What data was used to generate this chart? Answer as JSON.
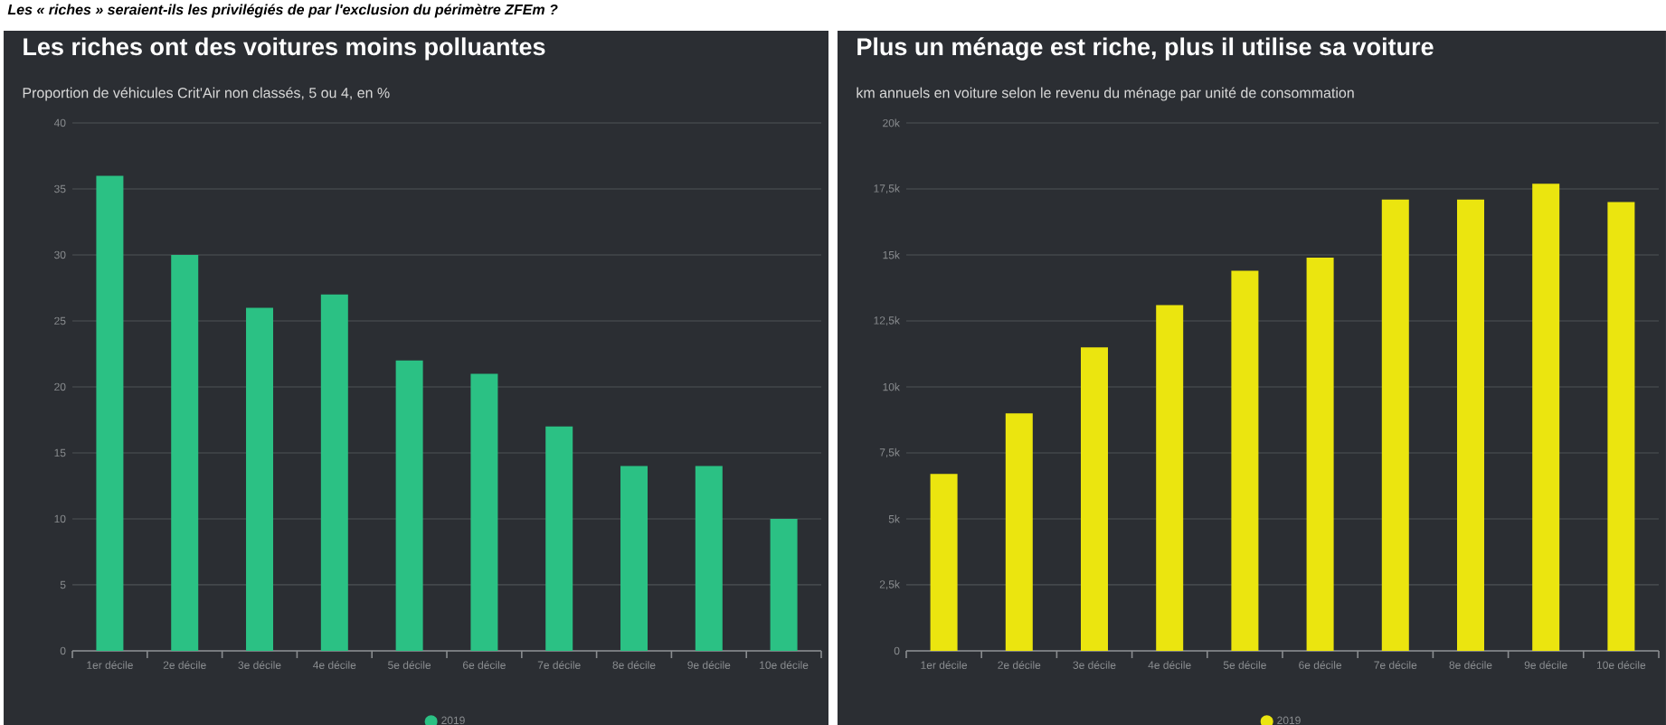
{
  "chart_data": [
    {
      "type": "bar",
      "title": "Les riches ont des voitures moins polluantes",
      "subtitle": "Proportion de véhicules Crit'Air non classés, 5 ou 4, en %",
      "annotations": [
        "Les « riches » seraient-ils les privilégiés de par l'exclusion du périmètre ZFEm ?"
      ],
      "categories": [
        "1er décile",
        "2e décile",
        "3e décile",
        "4e décile",
        "5e décile",
        "6e décile",
        "7e décile",
        "8e décile",
        "9e décile",
        "10e décile"
      ],
      "series": [
        {
          "name": "2019",
          "color": "#2bc184",
          "values": [
            36,
            30,
            26,
            27,
            22,
            21,
            17,
            14,
            14,
            10
          ]
        }
      ],
      "ylim": [
        0,
        40
      ],
      "yticks": [
        0,
        5,
        10,
        15,
        20,
        25,
        30,
        35,
        40
      ],
      "grid": "y",
      "legend": "bottom"
    },
    {
      "type": "bar",
      "title": "Plus un ménage est riche, plus il utilise sa voiture",
      "subtitle": "km annuels en voiture selon le revenu du ménage par unité de consommation",
      "categories": [
        "1er décile",
        "2e décile",
        "3e décile",
        "4e décile",
        "5e décile",
        "6e décile",
        "7e décile",
        "8e décile",
        "9e décile",
        "10e décile"
      ],
      "series": [
        {
          "name": "2019",
          "color": "#ebe50f",
          "values": [
            6700,
            9000,
            11500,
            13100,
            14400,
            14900,
            17100,
            17100,
            17700,
            17000
          ]
        }
      ],
      "ylim": [
        0,
        20000
      ],
      "yticks": [
        0,
        {
          "value": 2500,
          "label": "2,5k"
        },
        {
          "value": 5000,
          "label": "5k"
        },
        {
          "value": 7500,
          "label": "7,5k"
        },
        {
          "value": 10000,
          "label": "10k"
        },
        {
          "value": 12500,
          "label": "12,5k"
        },
        {
          "value": 15000,
          "label": "15k"
        },
        {
          "value": 17500,
          "label": "17,5k"
        },
        {
          "value": 20000,
          "label": "20k"
        }
      ],
      "grid": "y",
      "legend": "bottom"
    }
  ]
}
